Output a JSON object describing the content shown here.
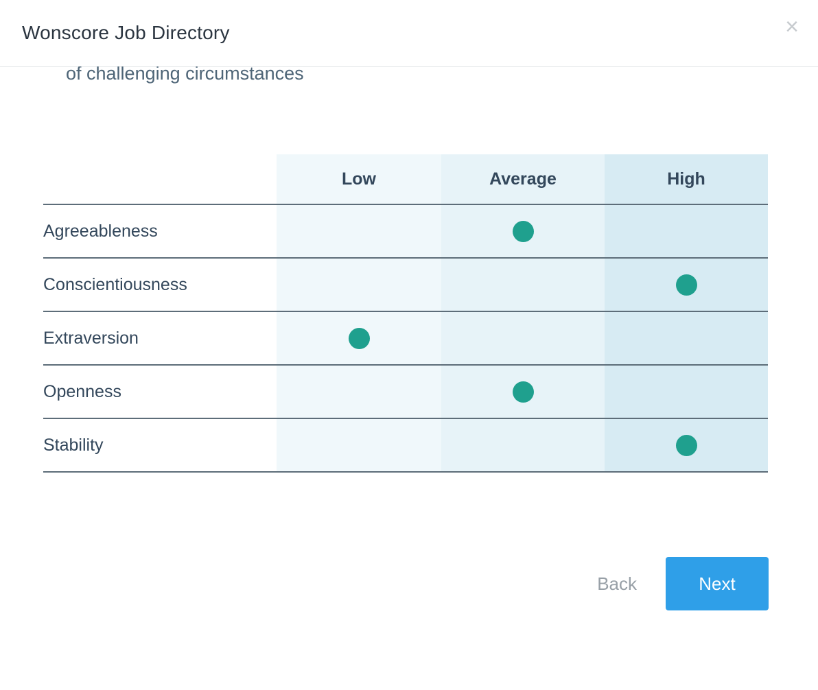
{
  "modal": {
    "title": "Wonscore Job Directory",
    "close_icon": "×"
  },
  "content": {
    "clipped_text": "of challenging circumstances"
  },
  "chart_data": {
    "type": "table",
    "columns": [
      "Low",
      "Average",
      "High"
    ],
    "rows": [
      {
        "label": "Agreeableness",
        "rating": "Average"
      },
      {
        "label": "Conscientiousness",
        "rating": "High"
      },
      {
        "label": "Extraversion",
        "rating": "Low"
      },
      {
        "label": "Openness",
        "rating": "Average"
      },
      {
        "label": "Stability",
        "rating": "High"
      }
    ]
  },
  "footer": {
    "back_label": "Back",
    "next_label": "Next"
  },
  "colors": {
    "dot": "#1FA08E",
    "next_button": "#2F9FE8",
    "column_bgs": [
      "#F0F8FB",
      "#E7F3F8",
      "#D7EBF3"
    ]
  }
}
